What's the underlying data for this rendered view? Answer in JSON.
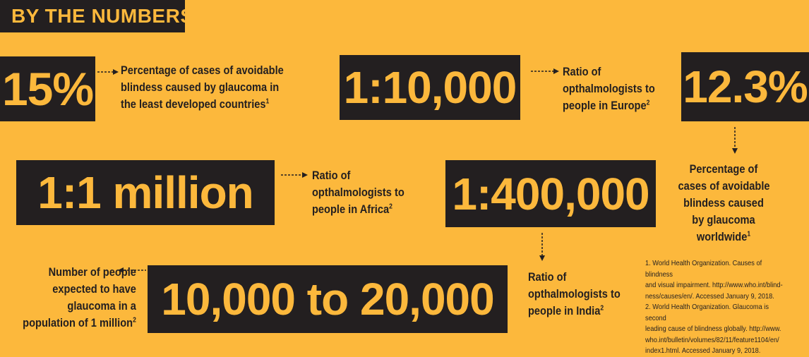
{
  "header": {
    "title": "BY THE NUMBERS"
  },
  "stats": {
    "s1": {
      "value": "15%",
      "desc1": "Percentage of cases of avoidable",
      "desc2": "blindess caused by glaucoma in",
      "desc3": "the least developed countries",
      "ref": "1"
    },
    "s2": {
      "value": "1:10,000",
      "desc1": "Ratio of",
      "desc2": "opthalmologists to",
      "desc3": "people in Europe",
      "ref": "2"
    },
    "s3": {
      "value": "12.3%",
      "desc1": "Percentage of",
      "desc2": "cases of avoidable",
      "desc3": "blindess caused",
      "desc4": "by glaucoma",
      "desc5": "worldwide",
      "ref": "1"
    },
    "s4": {
      "value": "1:1 million",
      "desc1": "Ratio of",
      "desc2": "opthalmologists to",
      "desc3": "people in Africa",
      "ref": "2"
    },
    "s5": {
      "value": "1:400,000",
      "desc1": "Ratio of",
      "desc2": "opthalmologists to",
      "desc3": "people in India",
      "ref": "2"
    },
    "s6": {
      "value": "10,000 to 20,000",
      "desc1": "Number of people",
      "desc2": "expected to have",
      "desc3": "glaucoma in a",
      "desc4": "population of 1 million",
      "ref": "2"
    }
  },
  "references": {
    "r1": "1.  World Health Organization. Causes of blindness\nand visual impairment. http://www.who.int/blind-\nness/causes/en/. Accessed January 9, 2018.",
    "r2": "2.  World Health Organization. Glaucoma is second\nleading cause of blindness globally. http://www.\nwho.int/bulletin/volumes/82/11/feature1104/en/\nindex1.html. Accessed January 9, 2018."
  },
  "colors": {
    "background": "#FCB83C",
    "dark": "#231F20"
  }
}
